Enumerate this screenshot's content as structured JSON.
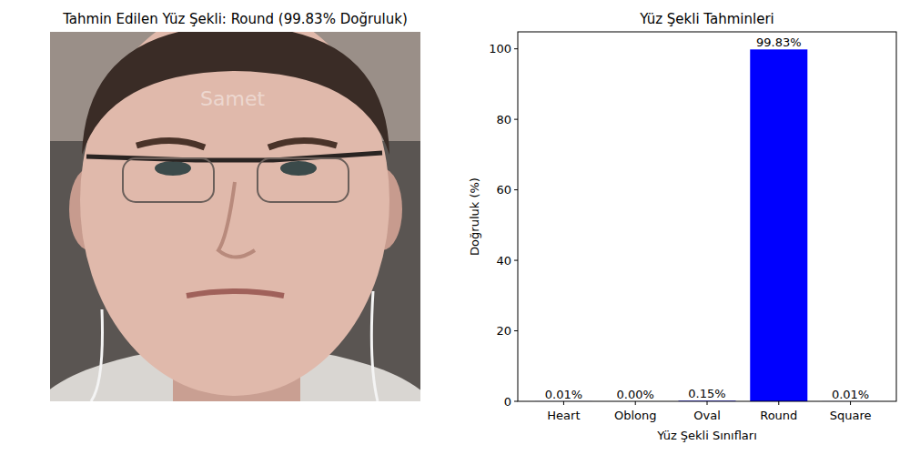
{
  "image_panel": {
    "title": "Tahmin Edilen Yüz Şekli: Round (99.83% Doğruluk)",
    "watermark": "Samet"
  },
  "chart_data": {
    "type": "bar",
    "title": "Yüz Şekli Tahminleri",
    "x_label": "Yüz Şekli Sınıfları",
    "y_label": "Doğruluk (%)",
    "categories": [
      "Heart",
      "Oblong",
      "Oval",
      "Round",
      "Square"
    ],
    "values": [
      0.01,
      0.0,
      0.15,
      99.83,
      0.01
    ],
    "value_labels": [
      "0.01%",
      "0.00%",
      "0.15%",
      "99.83%",
      "0.01%"
    ],
    "color": "#0000ff",
    "data_labels": true,
    "grid": false,
    "ylim": [
      0,
      104.82
    ],
    "yticks": [
      0,
      20,
      40,
      60,
      80,
      100
    ]
  }
}
